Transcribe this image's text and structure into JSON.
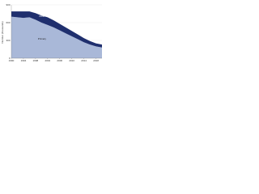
{
  "chart_data": {
    "type": "stacked-area",
    "y_label": "Number (thousands)",
    "x": [
      1990,
      1992,
      1994,
      1996,
      1998,
      2000,
      2002,
      2004,
      2006,
      2008,
      2010,
      2012,
      2014,
      2016,
      2018,
      2020
    ],
    "series": [
      {
        "name": "Primary",
        "color": "#a9b8d8",
        "values": [
          700,
          690,
          680,
          690,
          650,
          600,
          560,
          520,
          470,
          420,
          370,
          320,
          270,
          230,
          200,
          180
        ]
      },
      {
        "name": "Other",
        "color": "#1f2f6e",
        "values": [
          90,
          100,
          110,
          100,
          110,
          120,
          130,
          120,
          110,
          100,
          90,
          80,
          70,
          60,
          50,
          50
        ]
      }
    ],
    "xlim": [
      1990,
      2020
    ],
    "xticks": [
      1990,
      1994,
      1998,
      2002,
      2006,
      2010,
      2014,
      2018
    ],
    "ylim": [
      0,
      900
    ],
    "yticks": [
      0,
      300,
      600,
      900
    ],
    "grid": true
  }
}
